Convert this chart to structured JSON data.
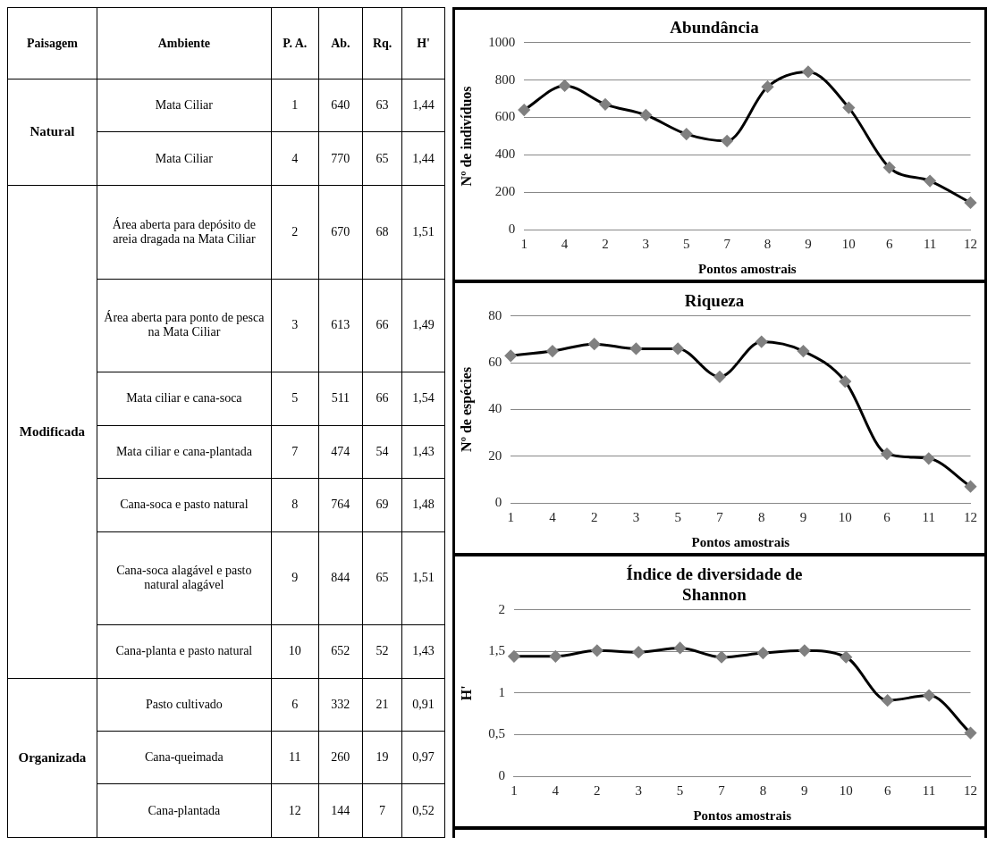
{
  "chart_data": [
    {
      "type": "other",
      "categories": [
        "Paisagem",
        "Ambiente",
        "P. A.",
        "Ab.",
        "Rq.",
        "H'"
      ],
      "cell_labels": [
        [
          "Natural",
          "Mata Ciliar",
          "1",
          "640",
          "63",
          "1,44"
        ],
        [
          null,
          "Mata Ciliar",
          "4",
          "770",
          "65",
          "1,44"
        ],
        [
          "Modificada",
          "Área aberta para depósito de areia dragada na Mata Ciliar",
          "2",
          "670",
          "68",
          "1,51"
        ],
        [
          null,
          "Área aberta para ponto de pesca na Mata Ciliar",
          "3",
          "613",
          "66",
          "1,49"
        ],
        [
          null,
          "Mata ciliar e cana-soca",
          "5",
          "511",
          "66",
          "1,54"
        ],
        [
          null,
          "Mata ciliar e cana-plantada",
          "7",
          "474",
          "54",
          "1,43"
        ],
        [
          null,
          "Cana-soca e pasto natural",
          "8",
          "764",
          "69",
          "1,48"
        ],
        [
          null,
          "Cana-soca alagável e pasto natural alagável",
          "9",
          "844",
          "65",
          "1,51"
        ],
        [
          null,
          "Cana-planta e pasto natural",
          "10",
          "652",
          "52",
          "1,43"
        ],
        [
          "Organizada",
          "Pasto cultivado",
          "6",
          "332",
          "21",
          "0,91"
        ],
        [
          null,
          "Cana-queimada",
          "11",
          "260",
          "19",
          "0,97"
        ],
        [
          null,
          "Cana-plantada",
          "12",
          "144",
          "7",
          "0,52"
        ]
      ]
    },
    {
      "type": "line",
      "title": "Abundância",
      "xlabel": "Pontos amostrais",
      "ylabel": "Nº de indivíduos",
      "categories": [
        "1",
        "4",
        "2",
        "3",
        "5",
        "7",
        "8",
        "9",
        "10",
        "6",
        "11",
        "12"
      ],
      "series": [
        {
          "color": "#000000",
          "values": [
            640,
            770,
            670,
            613,
            511,
            474,
            764,
            844,
            652,
            332,
            260,
            144
          ]
        }
      ],
      "ylim": [
        0,
        1000
      ],
      "yticks": [
        0,
        200,
        400,
        600,
        800,
        1000
      ],
      "grid": "y",
      "marker": "diamond",
      "line_style": "solid"
    },
    {
      "type": "line",
      "title": "Riqueza",
      "xlabel": "Pontos amostrais",
      "ylabel": "Nº de espécies",
      "categories": [
        "1",
        "4",
        "2",
        "3",
        "5",
        "7",
        "8",
        "9",
        "10",
        "6",
        "11",
        "12"
      ],
      "series": [
        {
          "color": "#000000",
          "values": [
            63,
            65,
            68,
            66,
            66,
            54,
            69,
            65,
            52,
            21,
            19,
            7
          ]
        }
      ],
      "ylim": [
        0,
        80
      ],
      "yticks": [
        0,
        20,
        40,
        60,
        80
      ],
      "grid": "y",
      "marker": "diamond",
      "line_style": "solid"
    },
    {
      "type": "line",
      "title": "Índice de diversidade de Shannon",
      "xlabel": "Pontos amostrais",
      "ylabel": "H'",
      "categories": [
        "1",
        "4",
        "2",
        "3",
        "5",
        "7",
        "8",
        "9",
        "10",
        "6",
        "11",
        "12"
      ],
      "series": [
        {
          "color": "#000000",
          "values": [
            1.44,
            1.44,
            1.51,
            1.49,
            1.54,
            1.43,
            1.48,
            1.51,
            1.43,
            0.91,
            0.97,
            0.52
          ]
        }
      ],
      "ylim": [
        0,
        2
      ],
      "yticks": [
        0,
        {
          "value": 0.5,
          "label": "0,5"
        },
        1,
        {
          "value": 1.5,
          "label": "1,5"
        },
        2
      ],
      "grid": "y",
      "marker": "diamond",
      "line_style": "solid"
    }
  ]
}
